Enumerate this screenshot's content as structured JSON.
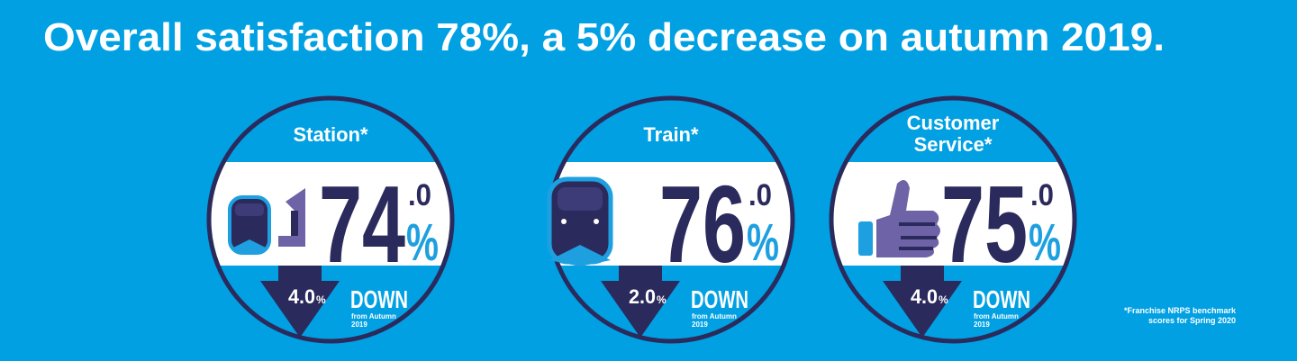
{
  "header": {
    "title": "Overall satisfaction 78%, a 5% decrease on autumn 2019."
  },
  "cards": [
    {
      "label": [
        "Station*"
      ],
      "score": "74",
      "decimal": ".0",
      "unit": "%",
      "change": "4.0",
      "change_unit": "%",
      "direction": "DOWN",
      "note": [
        "from Autumn",
        "2019"
      ]
    },
    {
      "label": [
        "Train*"
      ],
      "score": "76",
      "decimal": ".0",
      "unit": "%",
      "change": "2.0",
      "change_unit": "%",
      "direction": "DOWN",
      "note": [
        "from Autumn",
        "2019"
      ]
    },
    {
      "label": [
        "Customer",
        "Service*"
      ],
      "score": "75",
      "decimal": ".0",
      "unit": "%",
      "change": "4.0",
      "change_unit": "%",
      "direction": "DOWN",
      "note": [
        "from Autumn",
        "2019"
      ]
    }
  ],
  "footnote": [
    "*Franchise NRPS benchmark",
    "scores for Spring 2020"
  ]
}
